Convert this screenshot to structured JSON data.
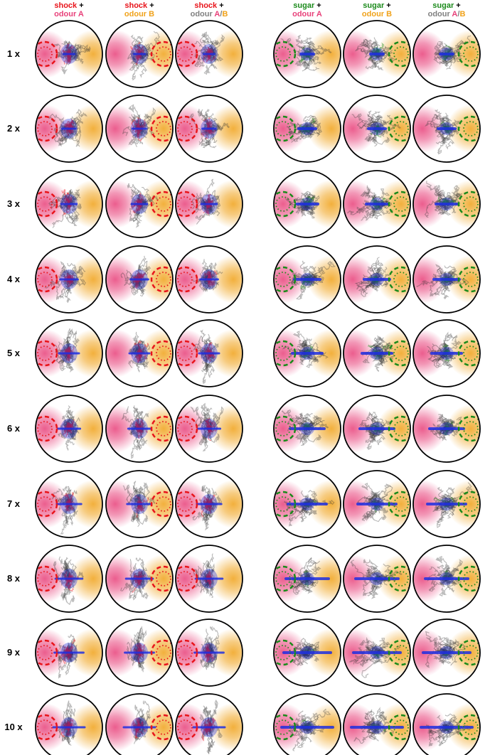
{
  "colors": {
    "shock": "#e8141b",
    "sugar": "#1b8a1b",
    "odour_a": "#e8417a",
    "odour_b": "#f0a21a",
    "mixed": "#808080",
    "summary": "#1f2fe0",
    "traces": "#333333"
  },
  "columns": [
    {
      "reinforcer": "shock",
      "plus": "+",
      "odour": "odour",
      "letter_a": "A",
      "slash": "",
      "letter_b": "",
      "reinforcer_type": "shock",
      "paired": "A"
    },
    {
      "reinforcer": "shock",
      "plus": "+",
      "odour": "odour",
      "letter_a": "",
      "slash": "",
      "letter_b": "B",
      "reinforcer_type": "shock",
      "paired": "B"
    },
    {
      "reinforcer": "shock",
      "plus": "+",
      "odour": "odour",
      "letter_a": "A",
      "slash": "/",
      "letter_b": "B",
      "reinforcer_type": "shock",
      "paired": "AB"
    },
    {
      "reinforcer": "sugar",
      "plus": "+",
      "odour": "odour",
      "letter_a": "A",
      "slash": "",
      "letter_b": "",
      "reinforcer_type": "sugar",
      "paired": "A"
    },
    {
      "reinforcer": "sugar",
      "plus": "+",
      "odour": "odour",
      "letter_a": "",
      "slash": "",
      "letter_b": "B",
      "reinforcer_type": "sugar",
      "paired": "B"
    },
    {
      "reinforcer": "sugar",
      "plus": "+",
      "odour": "odour",
      "letter_a": "A",
      "slash": "/",
      "letter_b": "B",
      "reinforcer_type": "sugar",
      "paired": "AB"
    }
  ],
  "rows": [
    {
      "label": "1 x",
      "trials": 1
    },
    {
      "label": "2 x",
      "trials": 2
    },
    {
      "label": "3 x",
      "trials": 3
    },
    {
      "label": "4 x",
      "trials": 4
    },
    {
      "label": "5 x",
      "trials": 5
    },
    {
      "label": "6 x",
      "trials": 6
    },
    {
      "label": "7 x",
      "trials": 7
    },
    {
      "label": "8 x",
      "trials": 8
    },
    {
      "label": "9 x",
      "trials": 9
    },
    {
      "label": "10 x",
      "trials": 10
    }
  ]
}
